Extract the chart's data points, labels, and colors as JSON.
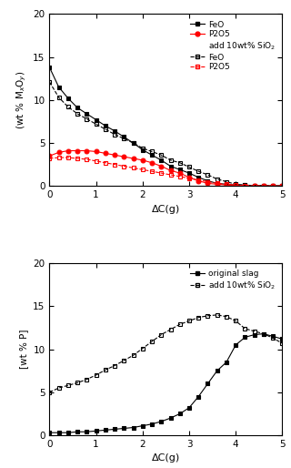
{
  "top_chart": {
    "ylabel": "(wt % M$_x$O$_y$)",
    "xlabel": "ΔC(g)",
    "ylim": [
      0,
      20
    ],
    "xlim": [
      0,
      5
    ],
    "yticks": [
      0,
      5,
      10,
      15,
      20
    ],
    "xticks": [
      0,
      1,
      2,
      3,
      4,
      5
    ],
    "series": {
      "FeO_orig": {
        "x": [
          0.0,
          0.2,
          0.4,
          0.6,
          0.8,
          1.0,
          1.2,
          1.4,
          1.6,
          1.8,
          2.0,
          2.2,
          2.4,
          2.6,
          2.8,
          3.0,
          3.2,
          3.4,
          3.6,
          3.8,
          4.0,
          4.2,
          4.4,
          4.6,
          4.8,
          5.0
        ],
        "y": [
          13.8,
          11.5,
          10.2,
          9.1,
          8.4,
          7.7,
          7.0,
          6.4,
          5.7,
          5.0,
          4.2,
          3.6,
          3.0,
          2.3,
          1.9,
          1.5,
          1.0,
          0.6,
          0.3,
          0.2,
          0.1,
          0.1,
          0.05,
          0.02,
          0.01,
          0.0
        ],
        "color": "black",
        "marker": "s",
        "fillstyle": "full",
        "label": "FeO",
        "linestyle": "-"
      },
      "P2O5_orig": {
        "x": [
          0.0,
          0.2,
          0.4,
          0.6,
          0.8,
          1.0,
          1.2,
          1.4,
          1.6,
          1.8,
          2.0,
          2.2,
          2.4,
          2.6,
          2.8,
          3.0,
          3.2,
          3.4,
          3.6,
          3.8,
          4.0,
          4.2,
          4.4,
          4.6,
          4.8,
          5.0
        ],
        "y": [
          3.5,
          3.9,
          4.1,
          4.1,
          4.1,
          4.0,
          3.8,
          3.6,
          3.4,
          3.2,
          3.0,
          2.7,
          2.3,
          1.8,
          1.5,
          1.0,
          0.6,
          0.3,
          0.2,
          0.12,
          0.08,
          0.05,
          0.03,
          0.01,
          0.0,
          0.0
        ],
        "color": "red",
        "marker": "o",
        "fillstyle": "full",
        "label": "P2O5",
        "linestyle": "-"
      },
      "FeO_sio2": {
        "x": [
          0.0,
          0.2,
          0.4,
          0.6,
          0.8,
          1.0,
          1.2,
          1.4,
          1.6,
          1.8,
          2.0,
          2.2,
          2.4,
          2.6,
          2.8,
          3.0,
          3.2,
          3.4,
          3.6,
          3.8,
          4.0,
          4.2,
          4.4,
          4.6,
          4.8,
          5.0
        ],
        "y": [
          12.1,
          10.3,
          9.2,
          8.4,
          7.8,
          7.2,
          6.6,
          6.0,
          5.5,
          5.0,
          4.4,
          4.0,
          3.6,
          3.0,
          2.7,
          2.2,
          1.7,
          1.3,
          0.8,
          0.5,
          0.2,
          0.1,
          0.05,
          0.02,
          0.0,
          0.0
        ],
        "color": "black",
        "marker": "s",
        "fillstyle": "none",
        "label": "FeO",
        "linestyle": "--"
      },
      "P2O5_sio2": {
        "x": [
          0.0,
          0.2,
          0.4,
          0.6,
          0.8,
          1.0,
          1.2,
          1.4,
          1.6,
          1.8,
          2.0,
          2.2,
          2.4,
          2.6,
          2.8,
          3.0,
          3.2,
          3.4,
          3.6,
          3.8,
          4.0,
          4.2,
          4.4,
          4.6,
          4.8,
          5.0
        ],
        "y": [
          3.2,
          3.3,
          3.3,
          3.2,
          3.1,
          2.9,
          2.7,
          2.5,
          2.3,
          2.1,
          1.9,
          1.7,
          1.5,
          1.3,
          1.1,
          0.9,
          0.7,
          0.5,
          0.3,
          0.2,
          0.1,
          0.06,
          0.03,
          0.01,
          0.0,
          0.0
        ],
        "color": "red",
        "marker": "s",
        "fillstyle": "none",
        "label": "P2O5",
        "linestyle": "--"
      }
    }
  },
  "bottom_chart": {
    "ylabel": "[wt % P]",
    "xlabel": "ΔC(g)",
    "ylim": [
      0,
      20
    ],
    "xlim": [
      0,
      5
    ],
    "yticks": [
      0,
      5,
      10,
      15,
      20
    ],
    "xticks": [
      0,
      1,
      2,
      3,
      4,
      5
    ],
    "series": {
      "original_slag": {
        "x": [
          0.0,
          0.2,
          0.4,
          0.6,
          0.8,
          1.0,
          1.2,
          1.4,
          1.6,
          1.8,
          2.0,
          2.2,
          2.4,
          2.6,
          2.8,
          3.0,
          3.2,
          3.4,
          3.6,
          3.8,
          4.0,
          4.2,
          4.4,
          4.6,
          4.8,
          5.0
        ],
        "y": [
          0.3,
          0.3,
          0.3,
          0.4,
          0.4,
          0.5,
          0.6,
          0.7,
          0.8,
          0.9,
          1.1,
          1.3,
          1.6,
          2.0,
          2.5,
          3.2,
          4.5,
          6.0,
          7.5,
          8.5,
          10.5,
          11.4,
          11.7,
          11.8,
          11.5,
          11.2
        ],
        "color": "black",
        "marker": "s",
        "fillstyle": "full",
        "label": "original slag",
        "linestyle": "-"
      },
      "add_sio2": {
        "x": [
          0.0,
          0.2,
          0.4,
          0.6,
          0.8,
          1.0,
          1.2,
          1.4,
          1.6,
          1.8,
          2.0,
          2.2,
          2.4,
          2.6,
          2.8,
          3.0,
          3.2,
          3.4,
          3.6,
          3.8,
          4.0,
          4.2,
          4.4,
          4.6,
          4.8,
          5.0
        ],
        "y": [
          5.0,
          5.5,
          5.8,
          6.1,
          6.5,
          7.0,
          7.6,
          8.1,
          8.7,
          9.3,
          10.1,
          10.9,
          11.7,
          12.3,
          12.9,
          13.3,
          13.7,
          13.9,
          14.0,
          13.8,
          13.3,
          12.4,
          12.1,
          11.8,
          11.3,
          10.7
        ],
        "color": "black",
        "marker": "s",
        "fillstyle": "none",
        "label": "add 10wt% SiO$_2$",
        "linestyle": "--"
      }
    }
  }
}
